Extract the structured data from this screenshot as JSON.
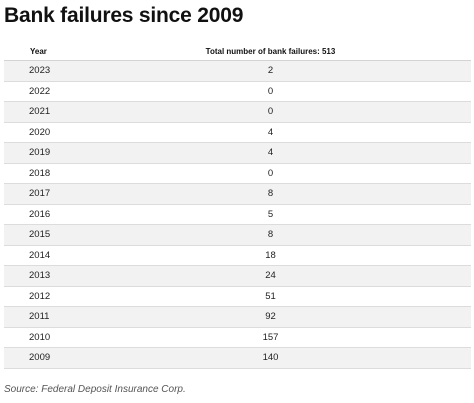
{
  "chart_data": {
    "type": "table",
    "title": "Bank failures since 2009",
    "columns": [
      "Year",
      "Total number of bank failures: 513"
    ],
    "rows": [
      {
        "year": "2023",
        "value": "2"
      },
      {
        "year": "2022",
        "value": "0"
      },
      {
        "year": "2021",
        "value": "0"
      },
      {
        "year": "2020",
        "value": "4"
      },
      {
        "year": "2019",
        "value": "4"
      },
      {
        "year": "2018",
        "value": "0"
      },
      {
        "year": "2017",
        "value": "8"
      },
      {
        "year": "2016",
        "value": "5"
      },
      {
        "year": "2015",
        "value": "8"
      },
      {
        "year": "2014",
        "value": "18"
      },
      {
        "year": "2013",
        "value": "24"
      },
      {
        "year": "2012",
        "value": "51"
      },
      {
        "year": "2011",
        "value": "92"
      },
      {
        "year": "2010",
        "value": "157"
      },
      {
        "year": "2009",
        "value": "140"
      }
    ],
    "source": "Source: Federal Deposit Insurance Corp."
  }
}
